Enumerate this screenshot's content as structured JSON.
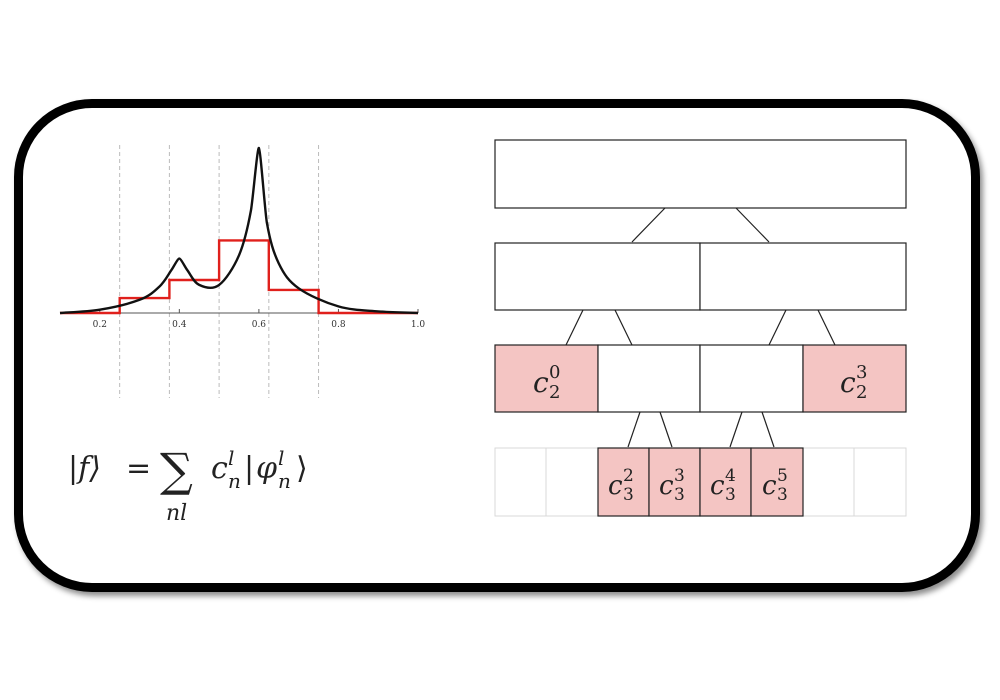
{
  "chart_data": {
    "type": "line",
    "x_ticks": [
      "0.2",
      "0.4",
      "0.6",
      "0.8",
      "1.0"
    ],
    "xlim": [
      0.1,
      1.0
    ],
    "ylim": [
      0,
      1.0
    ],
    "grid": "vertical dashed lines at 0.25, 0.375, 0.5, 0.625, 0.75",
    "series": [
      {
        "color": "#000000",
        "style": "smooth curve with peaks at x=0.4 and x=0.6",
        "x": [
          0.1,
          0.2,
          0.3,
          0.35,
          0.38,
          0.4,
          0.42,
          0.45,
          0.5,
          0.55,
          0.58,
          0.6,
          0.62,
          0.65,
          0.7,
          0.8,
          0.9,
          1.0
        ],
        "y": [
          0.0,
          0.02,
          0.08,
          0.16,
          0.26,
          0.33,
          0.26,
          0.17,
          0.17,
          0.35,
          0.62,
          1.0,
          0.55,
          0.3,
          0.15,
          0.04,
          0.01,
          0.0
        ]
      },
      {
        "color": "#e0201c",
        "style": "step",
        "x": [
          0.1,
          0.25,
          0.25,
          0.375,
          0.375,
          0.5,
          0.5,
          0.625,
          0.625,
          0.75,
          0.75,
          1.0
        ],
        "y": [
          0.0,
          0.0,
          0.09,
          0.09,
          0.2,
          0.2,
          0.44,
          0.44,
          0.14,
          0.14,
          0.0,
          0.0
        ]
      }
    ]
  },
  "equation": {
    "lhs": "|f⟩",
    "eq": "=",
    "sum": "∑",
    "sum_sub": "nl",
    "coef": "c",
    "coef_sub": "n",
    "coef_sup": "l",
    "ket_open": "|",
    "phi": "φ",
    "phi_sub": "n",
    "phi_sup": "l",
    "ket_close": "⟩"
  },
  "tree": {
    "highlight_color": "#f4c5c3",
    "level2_labels": [
      {
        "base": "c",
        "sub": "2",
        "sup": "0"
      },
      {
        "base": "c",
        "sub": "2",
        "sup": "3"
      }
    ],
    "level3_labels": [
      {
        "base": "c",
        "sub": "3",
        "sup": "2"
      },
      {
        "base": "c",
        "sub": "3",
        "sup": "3"
      },
      {
        "base": "c",
        "sub": "3",
        "sup": "4"
      },
      {
        "base": "c",
        "sub": "3",
        "sup": "5"
      }
    ]
  }
}
